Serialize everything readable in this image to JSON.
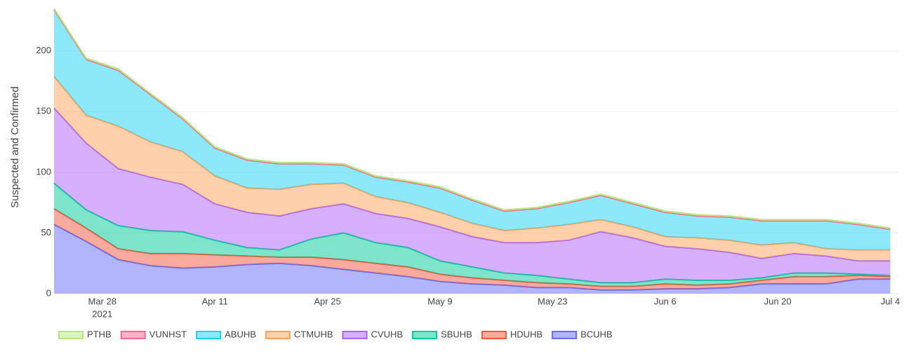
{
  "chart_data": {
    "type": "stacked_area",
    "y_label": "Suspected and Confirmed",
    "x": [
      "2021-03-22",
      "2021-03-26",
      "2021-03-30",
      "2021-04-03",
      "2021-04-07",
      "2021-04-11",
      "2021-04-15",
      "2021-04-19",
      "2021-04-23",
      "2021-04-27",
      "2021-05-01",
      "2021-05-05",
      "2021-05-09",
      "2021-05-13",
      "2021-05-17",
      "2021-05-21",
      "2021-05-25",
      "2021-05-29",
      "2021-06-02",
      "2021-06-06",
      "2021-06-10",
      "2021-06-14",
      "2021-06-18",
      "2021-06-22",
      "2021-06-26",
      "2021-06-30",
      "2021-07-04"
    ],
    "xlim": [
      "2021-03-22",
      "2021-07-05"
    ],
    "xticks": [
      {
        "value": "2021-03-28",
        "label": "Mar 28"
      },
      {
        "value": "2021-04-11",
        "label": "Apr 11"
      },
      {
        "value": "2021-04-25",
        "label": "Apr 25"
      },
      {
        "value": "2021-05-09",
        "label": "May 9"
      },
      {
        "value": "2021-05-23",
        "label": "May 23"
      },
      {
        "value": "2021-06-06",
        "label": "Jun 6"
      },
      {
        "value": "2021-06-20",
        "label": "Jun 20"
      },
      {
        "value": "2021-07-04",
        "label": "Jul 4"
      }
    ],
    "x_year_label": "2021",
    "ylim": [
      0,
      242
    ],
    "yticks": [
      0,
      50,
      100,
      150,
      200
    ],
    "grid": true,
    "legend": "bottom",
    "series": [
      {
        "name": "BCUHB",
        "color": "#636efa",
        "values": [
          57,
          43,
          28,
          23,
          21,
          22,
          24,
          25,
          23,
          20,
          17,
          14,
          10,
          8,
          7,
          5,
          5,
          3,
          3,
          4,
          4,
          5,
          8,
          8,
          8,
          12,
          12
        ]
      },
      {
        "name": "HDUHB",
        "color": "#ef553b",
        "values": [
          13,
          11,
          9,
          10,
          12,
          10,
          7,
          5,
          7,
          8,
          8,
          8,
          6,
          5,
          4,
          4,
          3,
          3,
          3,
          4,
          3,
          3,
          3,
          6,
          6,
          3,
          2
        ]
      },
      {
        "name": "SBUHB",
        "color": "#00cc96",
        "values": [
          21,
          15,
          19,
          19,
          18,
          12,
          7,
          6,
          15,
          22,
          17,
          16,
          11,
          9,
          6,
          6,
          4,
          3,
          3,
          4,
          4,
          3,
          2,
          3,
          3,
          1,
          1
        ]
      },
      {
        "name": "CVUHB",
        "color": "#ab63fa",
        "values": [
          62,
          55,
          47,
          44,
          39,
          30,
          29,
          28,
          25,
          24,
          24,
          24,
          28,
          25,
          25,
          27,
          32,
          42,
          37,
          27,
          26,
          23,
          16,
          16,
          14,
          11,
          12
        ]
      },
      {
        "name": "CTMUHB",
        "color": "#ffa15a",
        "values": [
          26,
          23,
          35,
          29,
          27,
          23,
          20,
          22,
          20,
          17,
          14,
          13,
          12,
          11,
          10,
          12,
          13,
          10,
          9,
          8,
          9,
          10,
          11,
          9,
          6,
          9,
          9
        ]
      },
      {
        "name": "ABUHB",
        "color": "#19d3f3",
        "values": [
          55,
          46,
          46,
          39,
          27,
          23,
          23,
          21,
          17,
          15,
          16,
          17,
          20,
          19,
          16,
          16,
          18,
          20,
          19,
          20,
          18,
          19,
          20,
          18,
          23,
          21,
          17
        ]
      },
      {
        "name": "VUNHST",
        "color": "#ff6692",
        "values": [
          0,
          0,
          0,
          0,
          0,
          0,
          0,
          0,
          0,
          0,
          0,
          0,
          0,
          0,
          0,
          0,
          0,
          0,
          0,
          0,
          0,
          0,
          0,
          0,
          0,
          0,
          0
        ]
      },
      {
        "name": "PTHB",
        "color": "#b6e880",
        "values": [
          1,
          1,
          1,
          1,
          1,
          1,
          1,
          1,
          1,
          1,
          1,
          1,
          1,
          1,
          1,
          1,
          1,
          1,
          1,
          1,
          1,
          1,
          1,
          1,
          1,
          1,
          1
        ]
      }
    ]
  }
}
